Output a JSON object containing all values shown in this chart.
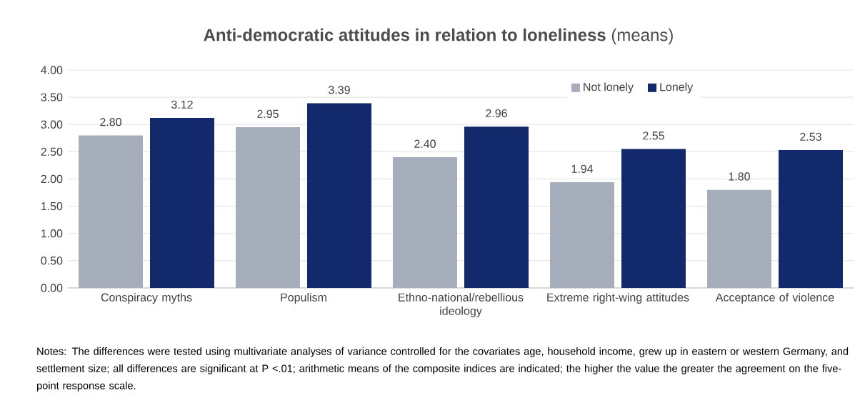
{
  "chart_data": {
    "type": "bar",
    "title": "**Anti-democratic attitudes in relation to loneliness** (means)",
    "categories": [
      "Conspiracy myths",
      "Populism",
      "Ethno-national/rebellious ideology",
      "Extreme right-wing attitudes",
      "Acceptance of violence"
    ],
    "series": [
      {
        "name": "Not lonely",
        "color": "#a6aebc",
        "values": [
          2.8,
          2.95,
          2.4,
          1.94,
          1.8
        ],
        "value_labels": [
          "2.80",
          "2.95",
          "2.40",
          "1.94",
          "1.80"
        ]
      },
      {
        "name": "Lonely",
        "color": "#12296b",
        "values": [
          3.12,
          3.39,
          2.96,
          2.55,
          2.53
        ],
        "value_labels": [
          "3.12",
          "3.39",
          "2.96",
          "2.55",
          "2.53"
        ]
      }
    ],
    "ylim": [
      0,
      4
    ],
    "yticks": [
      {
        "value": 0,
        "label": "0.00"
      },
      {
        "value": 0.5,
        "label": "0.50"
      },
      {
        "value": 1,
        "label": "1.00"
      },
      {
        "value": 1.5,
        "label": "1.50"
      },
      {
        "value": 2,
        "label": "2.00"
      },
      {
        "value": 2.5,
        "label": "2.50"
      },
      {
        "value": 3,
        "label": "3.00"
      },
      {
        "value": 3.5,
        "label": "3.50"
      },
      {
        "value": 4,
        "label": "4.00"
      }
    ],
    "grid": "y",
    "legend": "top right",
    "annotations": [
      "Notes: The differences were tested using multivariate analyses of variance controlled for the covariates age, household income, grew up in eastern or western Germany, and settlement size; all differences are significant at P <.01; arithmetic means of the composite indices are indicated; the higher the value the greater the agreement on the five-point response scale."
    ]
  }
}
